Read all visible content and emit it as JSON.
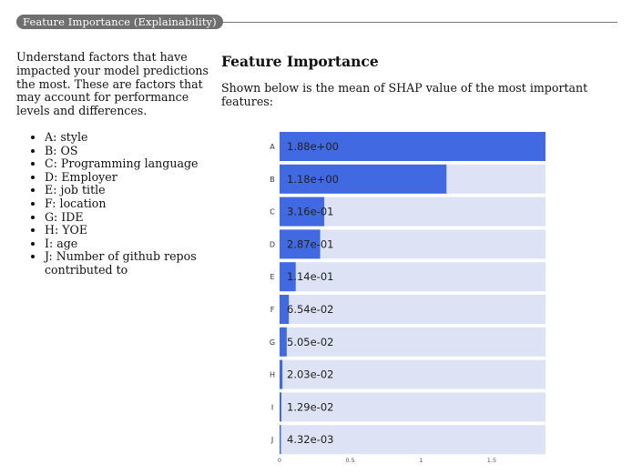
{
  "section_title": "Feature Importance (Explainability)",
  "intro_text": "Understand factors that have impacted your model predictions the most. These are factors that may account for performance levels and differences.",
  "features": [
    "A: style",
    "B: OS",
    "C: Programming language",
    "D: Employer",
    "E: job title",
    "F: location",
    "G: IDE",
    "H: YOE",
    "I: age",
    "J: Number of github repos contributed to"
  ],
  "chart_heading": "Feature Importance",
  "chart_description": "Shown below is the mean of SHAP value of the most important features:",
  "colors": {
    "bar": "#4169e1",
    "track": "#dde2f4"
  },
  "chart_data": {
    "type": "bar",
    "orientation": "horizontal",
    "categories": [
      "A",
      "B",
      "C",
      "D",
      "E",
      "F",
      "G",
      "H",
      "I",
      "J"
    ],
    "values": [
      1.88,
      1.18,
      0.316,
      0.287,
      0.114,
      0.0654,
      0.0505,
      0.0203,
      0.0129,
      0.00432
    ],
    "value_labels": [
      "1.88e+00",
      "1.18e+00",
      "3.16e-01",
      "2.87e-01",
      "1.14e-01",
      "6.54e-02",
      "5.05e-02",
      "2.03e-02",
      "1.29e-02",
      "4.32e-03"
    ],
    "xlim": [
      0,
      1.88
    ],
    "xticks": [
      0,
      0.5,
      1,
      1.5
    ],
    "xtick_labels": [
      "0",
      "0.5",
      "1",
      "1.5"
    ],
    "title": "",
    "xlabel": "",
    "ylabel": ""
  }
}
